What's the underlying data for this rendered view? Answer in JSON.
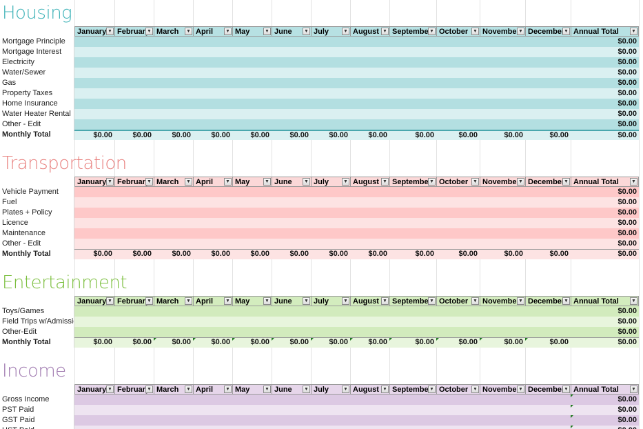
{
  "months": [
    "January",
    "February",
    "March",
    "April",
    "May",
    "June",
    "July",
    "August",
    "September",
    "October",
    "November",
    "December"
  ],
  "annual_total_label": "Annual Total",
  "zero_value": "$0.00",
  "dropdown_icon": "dropdown-arrow-icon",
  "colors": {
    "housing": {
      "title": "#3fb3b8",
      "header": "#b7e1e3",
      "row_a": "#b3dfe1",
      "row_b": "#daf0f1"
    },
    "transportation": {
      "title": "#e8807e",
      "header": "#fbd8d8",
      "row_a": "#fec8c8",
      "row_b": "#fde3e3"
    },
    "entertainment": {
      "title": "#7cbf3f",
      "header": "#d3ecbe",
      "row_a": "#d2ebbd",
      "row_b": "#e8f5dd"
    },
    "income": {
      "title": "#a07ab0",
      "header": "#e6d6ea",
      "row_a": "#dcc9e3",
      "row_b": "#eee4f1"
    }
  },
  "sections": [
    {
      "title": "Housing",
      "rows": [
        "Mortgage Principle",
        "Mortgage Interest",
        "Electricity",
        "Water/Sewer",
        "Gas",
        "Property Taxes",
        "Home Insurance",
        "Water Heater Rental",
        "Other - Edit"
      ],
      "total_label": "Monthly Total"
    },
    {
      "title": "Transportation",
      "rows": [
        "Vehicle Payment",
        "Fuel",
        "Plates + Policy",
        "Licence",
        "Maintenance",
        "Other - Edit"
      ],
      "total_label": "Monthly Total"
    },
    {
      "title": "Entertainment",
      "rows": [
        "Toys/Games",
        "Field Trips w/Admission",
        "Other-Edit"
      ],
      "total_label": "Monthly Total"
    },
    {
      "title": "Income",
      "rows": [
        "Gross Income",
        "PST Paid",
        "GST Paid",
        "HST Paid"
      ],
      "total_label": ""
    }
  ]
}
